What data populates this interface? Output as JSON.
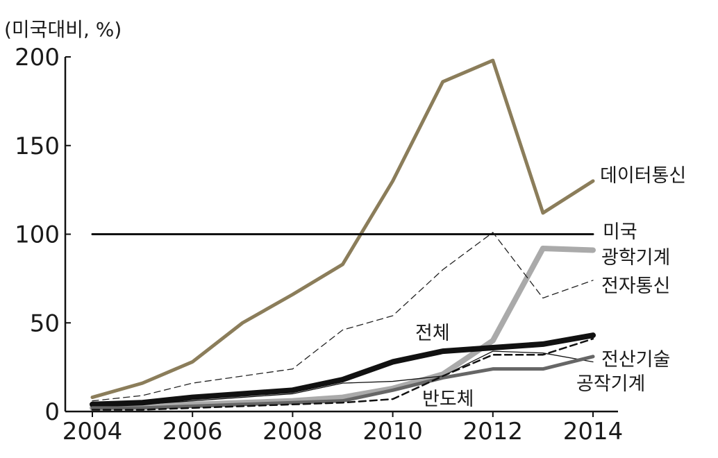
{
  "chart_data": {
    "type": "line",
    "unit_label": "(미국대비, %)",
    "ylim": [
      0,
      200
    ],
    "xlim": [
      2004,
      2014
    ],
    "yticks": [
      "0",
      "50",
      "100",
      "150",
      "200"
    ],
    "xticks": [
      "2004",
      "2006",
      "2008",
      "2010",
      "2012",
      "2014"
    ],
    "grid": false,
    "x": [
      2004,
      2005,
      2006,
      2007,
      2008,
      2009,
      2010,
      2011,
      2012,
      2013,
      2014
    ],
    "series": [
      {
        "name": "데이터통신",
        "color": "#8b7d5a",
        "style": "solid-thick",
        "values": [
          8,
          16,
          28,
          50,
          66,
          83,
          130,
          186,
          198,
          112,
          130
        ]
      },
      {
        "name": "미국",
        "color": "#111111",
        "style": "solid-medium",
        "values": [
          100,
          100,
          100,
          100,
          100,
          100,
          100,
          100,
          100,
          100,
          100
        ]
      },
      {
        "name": "광학기계",
        "color": "#aaaaaa",
        "style": "solid-xthick",
        "values": [
          2,
          3,
          4,
          5,
          6,
          8,
          13,
          21,
          40,
          92,
          91
        ]
      },
      {
        "name": "전자통신",
        "color": "#222222",
        "style": "dashed-thin",
        "values": [
          6,
          9,
          16,
          20,
          24,
          46,
          54,
          80,
          101,
          64,
          74
        ]
      },
      {
        "name": "전체",
        "color": "#111111",
        "style": "solid-xthick",
        "values": [
          4,
          5,
          8,
          10,
          12,
          18,
          28,
          34,
          36,
          38,
          43
        ]
      },
      {
        "name": "전산기술",
        "color": "#111111",
        "style": "solid-thin",
        "values": [
          3,
          4,
          6,
          8,
          10,
          16,
          17,
          20,
          34,
          33,
          28
        ]
      },
      {
        "name": "공작기계",
        "color": "#666666",
        "style": "solid-thick",
        "values": [
          2,
          2,
          3,
          4,
          5,
          6,
          12,
          19,
          24,
          24,
          31
        ]
      },
      {
        "name": "반도체",
        "color": "#111111",
        "style": "dashed-medium",
        "values": [
          1,
          1,
          2,
          3,
          4,
          5,
          7,
          20,
          32,
          32,
          41
        ]
      }
    ],
    "annotations": [
      {
        "text": "데이터통신",
        "series": "데이터통신"
      },
      {
        "text": "미국",
        "series": "미국"
      },
      {
        "text": "광학기계",
        "series": "광학기계"
      },
      {
        "text": "전자통신",
        "series": "전자통신"
      },
      {
        "text": "전체",
        "series": "전체"
      },
      {
        "text": "전산기술",
        "series": "전산기술"
      },
      {
        "text": "공작기계",
        "series": "공작기계"
      },
      {
        "text": "반도체",
        "series": "반도체"
      }
    ]
  }
}
